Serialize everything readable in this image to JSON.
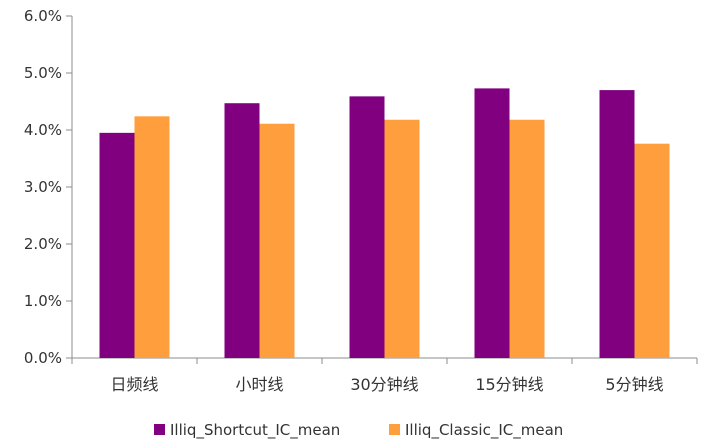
{
  "chart_data": {
    "type": "bar",
    "categories": [
      "日频线",
      "小时线",
      "30分钟线",
      "15分钟线",
      "5分钟线"
    ],
    "series": [
      {
        "name": "Illiq_Shortcut_IC_mean",
        "color": "#800080",
        "values": [
          3.95,
          4.47,
          4.59,
          4.73,
          4.7
        ]
      },
      {
        "name": "Illiq_Classic_IC_mean",
        "color": "#FF9E3D",
        "values": [
          4.24,
          4.11,
          4.18,
          4.18,
          3.76
        ]
      }
    ],
    "ylim": [
      0,
      6
    ],
    "yticks": [
      "0.0%",
      "1.0%",
      "2.0%",
      "3.0%",
      "4.0%",
      "5.0%",
      "6.0%"
    ],
    "grid": false,
    "legend": "bottom",
    "title": "",
    "xlabel": "",
    "ylabel": ""
  }
}
